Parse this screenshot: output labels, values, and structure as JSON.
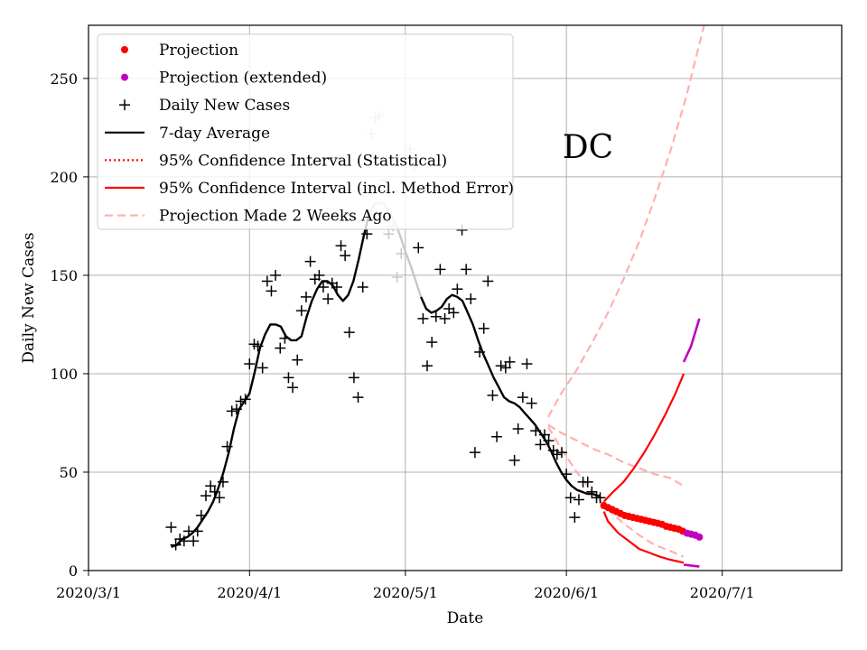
{
  "chart_data": {
    "type": "line",
    "title": "DC",
    "xlabel": "Date",
    "ylabel": "Daily New Cases",
    "x_domain_days": [
      0,
      145
    ],
    "ylim": [
      0,
      277
    ],
    "grid": true,
    "legend_position": "top-left",
    "x_ticks": [
      {
        "day": 0,
        "label": "2020/3/1"
      },
      {
        "day": 31,
        "label": "2020/4/1"
      },
      {
        "day": 61,
        "label": "2020/5/1"
      },
      {
        "day": 92,
        "label": "2020/6/1"
      },
      {
        "day": 122,
        "label": "2020/7/1"
      }
    ],
    "y_ticks": [
      0,
      50,
      100,
      150,
      200,
      250
    ],
    "colors": {
      "projection": "#ff0000",
      "projection_extended": "#bf00bf",
      "daily": "#000000",
      "daily_faded": "#c8c8c8",
      "average": "#000000",
      "ci": "#ff0000",
      "two_weeks_ago": "#ffb0b0"
    },
    "legend": [
      {
        "kind": "dot",
        "color": "#ff0000",
        "label": "Projection"
      },
      {
        "kind": "dot",
        "color": "#bf00bf",
        "label": "Projection (extended)"
      },
      {
        "kind": "plus",
        "color": "#000000",
        "label": "Daily New Cases"
      },
      {
        "kind": "line",
        "color": "#000000",
        "label": "7-day Average"
      },
      {
        "kind": "dotted",
        "color": "#ff0000",
        "label": "95% Confidence Interval (Statistical)"
      },
      {
        "kind": "solid",
        "color": "#ff0000",
        "label": "95% Confidence Interval (incl. Method Error)"
      },
      {
        "kind": "dashed",
        "color": "#ffb0b0",
        "label": "Projection Made 2 Weeks Ago"
      }
    ],
    "daily_new_cases": [
      [
        15.9,
        22
      ],
      [
        16.8,
        13
      ],
      [
        17.6,
        16
      ],
      [
        18.4,
        15
      ],
      [
        19.3,
        20
      ],
      [
        20.2,
        15
      ],
      [
        21.0,
        20
      ],
      [
        21.7,
        28
      ],
      [
        22.6,
        38
      ],
      [
        23.5,
        43
      ],
      [
        24.3,
        40
      ],
      [
        25.2,
        37
      ],
      [
        25.9,
        45
      ],
      [
        26.7,
        63
      ],
      [
        27.6,
        81
      ],
      [
        28.5,
        82
      ],
      [
        29.3,
        86
      ],
      [
        30.2,
        87
      ],
      [
        31.0,
        105
      ],
      [
        31.9,
        115
      ],
      [
        32.6,
        114
      ],
      [
        33.5,
        103
      ],
      [
        34.4,
        147
      ],
      [
        35.2,
        142
      ],
      [
        36.0,
        150
      ],
      [
        36.9,
        113
      ],
      [
        37.8,
        118
      ],
      [
        38.5,
        98
      ],
      [
        39.3,
        93
      ],
      [
        40.2,
        107
      ],
      [
        41.0,
        132
      ],
      [
        41.9,
        139
      ],
      [
        42.7,
        157
      ],
      [
        43.6,
        148
      ],
      [
        44.4,
        150
      ],
      [
        45.2,
        144
      ],
      [
        46.1,
        138
      ],
      [
        46.9,
        146
      ],
      [
        47.8,
        144
      ],
      [
        48.6,
        165
      ],
      [
        49.4,
        160
      ],
      [
        50.2,
        121
      ],
      [
        51.1,
        98
      ],
      [
        51.9,
        88
      ],
      [
        52.8,
        144
      ],
      [
        53.6,
        171
      ],
      [
        54.5,
        222
      ],
      [
        55.2,
        230
      ],
      [
        56.0,
        231
      ],
      [
        56.9,
        198
      ],
      [
        57.8,
        171
      ],
      [
        58.6,
        175
      ],
      [
        59.4,
        149
      ],
      [
        60.2,
        161
      ],
      [
        61.1,
        192
      ],
      [
        61.9,
        214
      ],
      [
        62.8,
        206
      ],
      [
        63.5,
        164
      ],
      [
        64.4,
        128
      ],
      [
        65.2,
        104
      ],
      [
        66.1,
        116
      ],
      [
        66.9,
        129
      ],
      [
        67.7,
        153
      ],
      [
        68.6,
        128
      ],
      [
        69.4,
        133
      ],
      [
        70.3,
        131
      ],
      [
        71.0,
        143
      ],
      [
        71.9,
        173
      ],
      [
        72.7,
        153
      ],
      [
        73.6,
        138
      ],
      [
        74.4,
        60
      ],
      [
        75.3,
        111
      ],
      [
        76.1,
        123
      ],
      [
        76.9,
        147
      ],
      [
        77.8,
        89
      ],
      [
        78.6,
        68
      ],
      [
        79.4,
        104
      ],
      [
        80.3,
        103
      ],
      [
        81.1,
        106
      ],
      [
        82.0,
        56
      ],
      [
        82.7,
        72
      ],
      [
        83.6,
        88
      ],
      [
        84.4,
        105
      ],
      [
        85.3,
        85
      ],
      [
        86.1,
        71
      ],
      [
        87.0,
        64
      ],
      [
        87.8,
        69
      ],
      [
        88.6,
        66
      ],
      [
        89.5,
        61
      ],
      [
        90.2,
        59
      ],
      [
        91.1,
        60
      ],
      [
        92.0,
        49
      ],
      [
        92.8,
        37
      ],
      [
        93.6,
        27
      ],
      [
        94.4,
        36
      ],
      [
        95.2,
        45
      ],
      [
        96.1,
        45
      ],
      [
        96.9,
        40
      ],
      [
        97.8,
        37
      ],
      [
        98.5,
        37
      ]
    ],
    "faded_day_range": [
      54.0,
      63.0
    ],
    "seven_day_average": [
      [
        15.9,
        12
      ],
      [
        17,
        13
      ],
      [
        18,
        16
      ],
      [
        19,
        17
      ],
      [
        20,
        19
      ],
      [
        21,
        22
      ],
      [
        22,
        26
      ],
      [
        23,
        30
      ],
      [
        24,
        35
      ],
      [
        25,
        42
      ],
      [
        26,
        50
      ],
      [
        27,
        60
      ],
      [
        28,
        72
      ],
      [
        29,
        82
      ],
      [
        30,
        86
      ],
      [
        31,
        90
      ],
      [
        32,
        101
      ],
      [
        33,
        113
      ],
      [
        34,
        120
      ],
      [
        35,
        125
      ],
      [
        36,
        125
      ],
      [
        37,
        124
      ],
      [
        38,
        119
      ],
      [
        39,
        117
      ],
      [
        40,
        117
      ],
      [
        41,
        119
      ],
      [
        42,
        129
      ],
      [
        43,
        137
      ],
      [
        44,
        143
      ],
      [
        45,
        147
      ],
      [
        46,
        147
      ],
      [
        47,
        145
      ],
      [
        48,
        140
      ],
      [
        49,
        137
      ],
      [
        50,
        140
      ],
      [
        51,
        147
      ],
      [
        52,
        158
      ],
      [
        53,
        170
      ],
      [
        54,
        181
      ],
      [
        55,
        186
      ],
      [
        56,
        187
      ],
      [
        57,
        186
      ],
      [
        58,
        182
      ],
      [
        59,
        177
      ],
      [
        60,
        170
      ],
      [
        61,
        162
      ],
      [
        62,
        155
      ],
      [
        63,
        147
      ],
      [
        64,
        139
      ],
      [
        65,
        133
      ],
      [
        66,
        131
      ],
      [
        67,
        132
      ],
      [
        68,
        134
      ],
      [
        69,
        138
      ],
      [
        70,
        140
      ],
      [
        71,
        139
      ],
      [
        72,
        137
      ],
      [
        73,
        131
      ],
      [
        74,
        125
      ],
      [
        75,
        117
      ],
      [
        76,
        110
      ],
      [
        77,
        104
      ],
      [
        78,
        98
      ],
      [
        79,
        93
      ],
      [
        80,
        88
      ],
      [
        81,
        86
      ],
      [
        82,
        85
      ],
      [
        83,
        83
      ],
      [
        84,
        80
      ],
      [
        85,
        77
      ],
      [
        86,
        74
      ],
      [
        87,
        70
      ],
      [
        88,
        66
      ],
      [
        89,
        61
      ],
      [
        90,
        55
      ],
      [
        91,
        50
      ],
      [
        92,
        46
      ],
      [
        93,
        43
      ],
      [
        94,
        41
      ],
      [
        95,
        40
      ],
      [
        96,
        39
      ],
      [
        97,
        39
      ],
      [
        98,
        38
      ],
      [
        98.5,
        38
      ]
    ],
    "projection_days": [
      99.2,
      100.0,
      100.8,
      101.6,
      102.4,
      103.2,
      104.0,
      104.8,
      105.6,
      106.4,
      107.2,
      108.0,
      108.8,
      109.6,
      110.4,
      111.2,
      112.0,
      112.8,
      113.6,
      114.4
    ],
    "projection_values": [
      33,
      32,
      31,
      30,
      29,
      28,
      27.5,
      27,
      26.5,
      26,
      25.5,
      25,
      24.5,
      24,
      23.5,
      22.5,
      22,
      21.5,
      21,
      20
    ],
    "projection_extended_days": [
      115.2,
      116.0,
      116.8,
      117.6
    ],
    "projection_extended_values": [
      19,
      18.5,
      18,
      17
    ],
    "ci_upper": [
      [
        99.2,
        35
      ],
      [
        101,
        40
      ],
      [
        103,
        45
      ],
      [
        105,
        52
      ],
      [
        107,
        60
      ],
      [
        109,
        69
      ],
      [
        111,
        79
      ],
      [
        113,
        90
      ],
      [
        114.6,
        100
      ]
    ],
    "ci_lower": [
      [
        99.2,
        30
      ],
      [
        100,
        25
      ],
      [
        102,
        19
      ],
      [
        104,
        15
      ],
      [
        106,
        11
      ],
      [
        108,
        9
      ],
      [
        110,
        7
      ],
      [
        112,
        5.5
      ],
      [
        114.6,
        4
      ]
    ],
    "ci_upper_extended": [
      [
        114.6,
        106
      ],
      [
        116,
        114
      ],
      [
        117.6,
        128
      ]
    ],
    "ci_lower_extended": [
      [
        114.6,
        3
      ],
      [
        116,
        2.5
      ],
      [
        117.6,
        2
      ]
    ],
    "two_weeks_ago_upper": [
      [
        88.5,
        78
      ],
      [
        91,
        90
      ],
      [
        94,
        102
      ],
      [
        97,
        116
      ],
      [
        100,
        131
      ],
      [
        103,
        148
      ],
      [
        106,
        167
      ],
      [
        109,
        189
      ],
      [
        112,
        213
      ],
      [
        115,
        240
      ],
      [
        118.5,
        277
      ]
    ],
    "two_weeks_ago_mid": [
      [
        88.5,
        74
      ],
      [
        91,
        70
      ],
      [
        94,
        66
      ],
      [
        97,
        62
      ],
      [
        100,
        59
      ],
      [
        103,
        55
      ],
      [
        106,
        52
      ],
      [
        109,
        49
      ],
      [
        112,
        47
      ],
      [
        114.5,
        43
      ]
    ],
    "two_weeks_ago_lower": [
      [
        88.5,
        73
      ],
      [
        91,
        62
      ],
      [
        94,
        50
      ],
      [
        97,
        40
      ],
      [
        100,
        31
      ],
      [
        103,
        24
      ],
      [
        106,
        18
      ],
      [
        109,
        13
      ],
      [
        112,
        10
      ],
      [
        114.5,
        7
      ]
    ]
  }
}
